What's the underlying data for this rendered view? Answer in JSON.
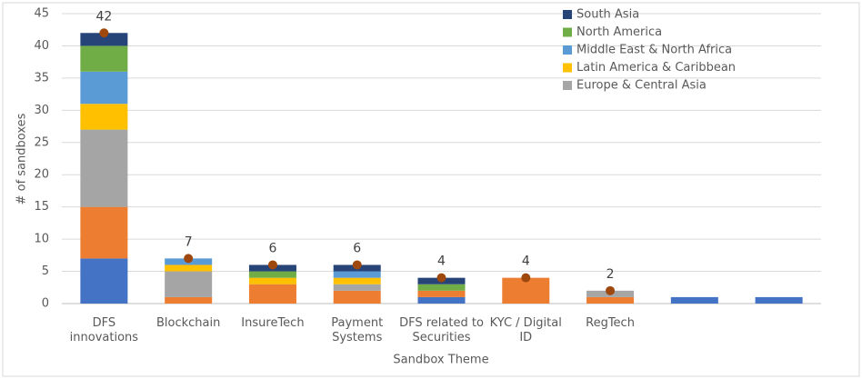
{
  "chart_data": {
    "type": "stacked_bar",
    "y_label": "# of sandboxes",
    "x_label": "Sandbox Theme",
    "categories": [
      "DFS innovations",
      "Blockchain",
      "InsureTech",
      "Payment Systems",
      "DFS related to Securities",
      "KYC / Digital ID",
      "RegTech",
      null,
      null
    ],
    "series": [
      {
        "color": "#4472c4",
        "values": [
          7,
          0,
          0,
          0,
          1,
          0,
          0,
          1,
          1
        ]
      },
      {
        "color": "#ed7d31",
        "values": [
          8,
          1,
          3,
          2,
          1,
          4,
          1,
          0,
          0
        ]
      },
      {
        "name": "Europe & Central Asia",
        "color": "#a5a5a5",
        "values": [
          12,
          4,
          0,
          1,
          0,
          0,
          1,
          0,
          0
        ]
      },
      {
        "name": "Latin America & Caribbean",
        "color": "#ffc000",
        "values": [
          4,
          1,
          1,
          1,
          0,
          0,
          0,
          0,
          0
        ]
      },
      {
        "name": "Middle East & North Africa",
        "color": "#5b9bd5",
        "values": [
          5,
          1,
          0,
          1,
          0,
          0,
          0,
          0,
          0
        ]
      },
      {
        "name": "North America",
        "color": "#70ad47",
        "values": [
          4,
          0,
          1,
          0,
          1,
          0,
          0,
          0,
          0
        ]
      },
      {
        "name": "South Asia",
        "color": "#264478",
        "values": [
          2,
          0,
          1,
          1,
          1,
          0,
          0,
          0,
          0
        ]
      }
    ],
    "totals": {
      "color": "#9e480e",
      "values": [
        42,
        7,
        6,
        6,
        4,
        4,
        2,
        null,
        null
      ]
    },
    "ylim": [
      0,
      45
    ],
    "yticks": [
      0,
      5,
      10,
      15,
      20,
      25,
      30,
      35,
      40,
      45
    ],
    "grid": true
  }
}
